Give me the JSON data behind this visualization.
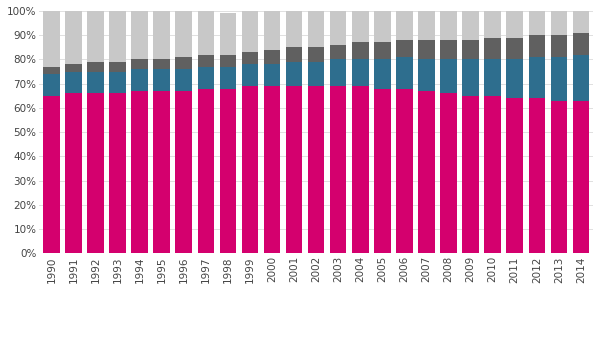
{
  "years": [
    1990,
    1991,
    1992,
    1993,
    1994,
    1995,
    1996,
    1997,
    1998,
    1999,
    2000,
    2001,
    2002,
    2003,
    2004,
    2005,
    2006,
    2007,
    2008,
    2009,
    2010,
    2011,
    2012,
    2013,
    2014
  ],
  "owner_occupied": [
    65,
    66,
    66,
    66,
    67,
    67,
    67,
    68,
    68,
    69,
    69,
    69,
    69,
    69,
    69,
    68,
    68,
    67,
    66,
    65,
    65,
    64,
    64,
    63,
    63
  ],
  "rented_privately": [
    9,
    9,
    9,
    9,
    9,
    9,
    9,
    9,
    9,
    9,
    9,
    10,
    10,
    11,
    11,
    12,
    13,
    13,
    14,
    15,
    15,
    16,
    17,
    18,
    19
  ],
  "rented_housing_assoc": [
    3,
    3,
    4,
    4,
    4,
    4,
    5,
    5,
    5,
    5,
    6,
    6,
    6,
    6,
    7,
    7,
    7,
    8,
    8,
    8,
    9,
    9,
    9,
    9,
    9
  ],
  "rented_local_auth": [
    23,
    22,
    21,
    21,
    20,
    20,
    19,
    18,
    17,
    17,
    16,
    15,
    15,
    14,
    13,
    13,
    12,
    12,
    12,
    12,
    11,
    11,
    10,
    10,
    9
  ],
  "colors": {
    "owner_occupied": "#d4006e",
    "rented_privately": "#2e6e8e",
    "rented_housing_assoc": "#606060",
    "rented_local_auth": "#c8c8c8"
  },
  "ytick_labels": [
    "0%",
    "10%",
    "20%",
    "30%",
    "40%",
    "50%",
    "60%",
    "70%",
    "80%",
    "90%",
    "100%"
  ],
  "background_color": "#ffffff",
  "grid_color": "#e0e0e0"
}
